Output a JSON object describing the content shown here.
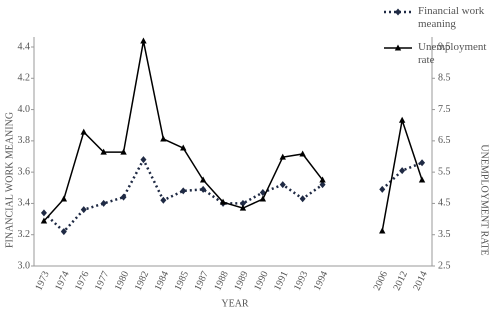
{
  "chart_data": {
    "type": "line",
    "categories": [
      "1973",
      "1974",
      "1976",
      "1977",
      "1980",
      "1982",
      "1984",
      "1985",
      "1987",
      "1988",
      "1989",
      "1990",
      "1991",
      "1993",
      "1994",
      null,
      null,
      "2006",
      "2012",
      "2014"
    ],
    "x_label": "YEAR",
    "y_label": "FINANCIAL WORK MEANING",
    "y2_label": "UNEMPLOYMENT RATE",
    "ylim": [
      3.0,
      4.4
    ],
    "yticks": [
      {
        "value": 3,
        "label": "3.0"
      },
      3.2,
      3.4,
      3.6,
      3.8,
      {
        "value": 4,
        "label": "4.0"
      },
      4.2,
      4.4
    ],
    "y2lim": [
      2.5,
      9.5
    ],
    "y2ticks": [
      2.5,
      3.5,
      4.5,
      5.5,
      6.5,
      7.5,
      8.5,
      9.5
    ],
    "series": [
      {
        "name": "Financial work meaning",
        "color": "#1f2a44",
        "line_style": "dotted",
        "marker": "diamond",
        "values": [
          3.34,
          3.22,
          3.36,
          3.4,
          3.44,
          3.68,
          3.42,
          3.48,
          3.49,
          3.4,
          3.4,
          3.47,
          3.52,
          3.43,
          3.52,
          null,
          null,
          3.49,
          3.61,
          3.66
        ]
      },
      {
        "name": "Unemployment rate",
        "color": "#000000",
        "line_style": "solid",
        "marker": "triangle",
        "axis": "y2",
        "values": [
          3.94,
          4.64,
          6.78,
          6.14,
          6.14,
          9.69,
          6.56,
          6.27,
          5.25,
          4.54,
          4.35,
          4.64,
          5.98,
          6.08,
          5.25,
          null,
          null,
          3.62,
          7.16,
          5.25
        ]
      }
    ],
    "legend": "top-right"
  }
}
